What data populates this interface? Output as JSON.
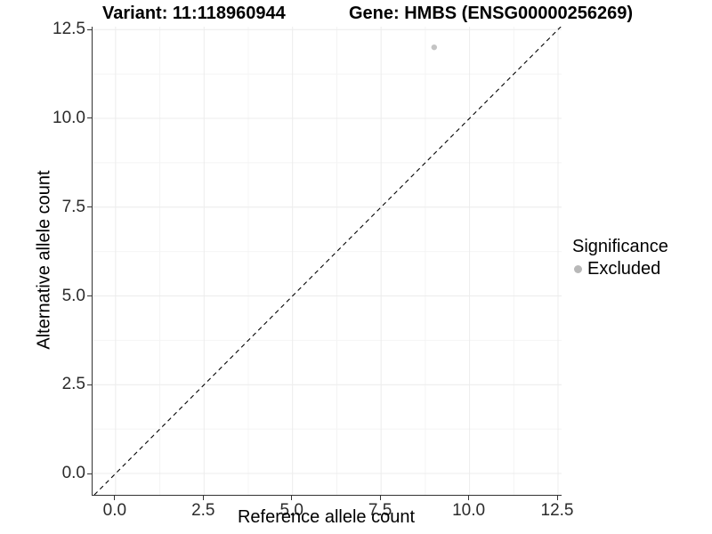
{
  "titles": {
    "variant": "Variant: 11:118960944",
    "gene": "Gene: HMBS (ENSG00000256269)"
  },
  "legend": {
    "title": "Significance",
    "items": [
      {
        "label": "Excluded",
        "color": "#b8b8b8",
        "marker": "circle"
      }
    ]
  },
  "colors": {
    "background": "#ffffff",
    "grid_major": "#ececec",
    "grid_minor": "#f4f4f4",
    "axis_line": "#333333",
    "reference_line": "#000000",
    "point": "#c4c4c4",
    "legend_marker": "#b8b8b8"
  },
  "chart_data": {
    "type": "scatter",
    "title": "Variant: 11:118960944 | Gene: HMBS (ENSG00000256269)",
    "xlabel": "Reference allele count",
    "ylabel": "Alternative allele count",
    "xlim": [
      -0.65,
      12.6
    ],
    "ylim": [
      -0.6,
      12.58
    ],
    "x_ticks": [
      0,
      2.5,
      5,
      7.5,
      10,
      12.5
    ],
    "x_tick_labels": [
      "0.0",
      "2.5",
      "5.0",
      "7.5",
      "10.0",
      "12.5"
    ],
    "x_minor_ticks": [
      1.25,
      3.75,
      6.25,
      8.75,
      11.25
    ],
    "y_ticks": [
      0,
      2.5,
      5,
      7.5,
      10,
      12.5
    ],
    "y_tick_labels": [
      "0.0",
      "2.5",
      "5.0",
      "7.5",
      "10.0",
      "12.5"
    ],
    "y_minor_ticks": [
      1.25,
      3.75,
      6.25,
      8.75,
      11.25
    ],
    "grid": true,
    "legend_position": "right",
    "series": [
      {
        "name": "Excluded",
        "points": [
          {
            "x": 9,
            "y": 12
          }
        ],
        "color": "#c4c4c4"
      }
    ],
    "reference_line": {
      "kind": "abline",
      "slope": 1,
      "intercept": 0,
      "style": "dashed",
      "color": "#000000"
    }
  }
}
